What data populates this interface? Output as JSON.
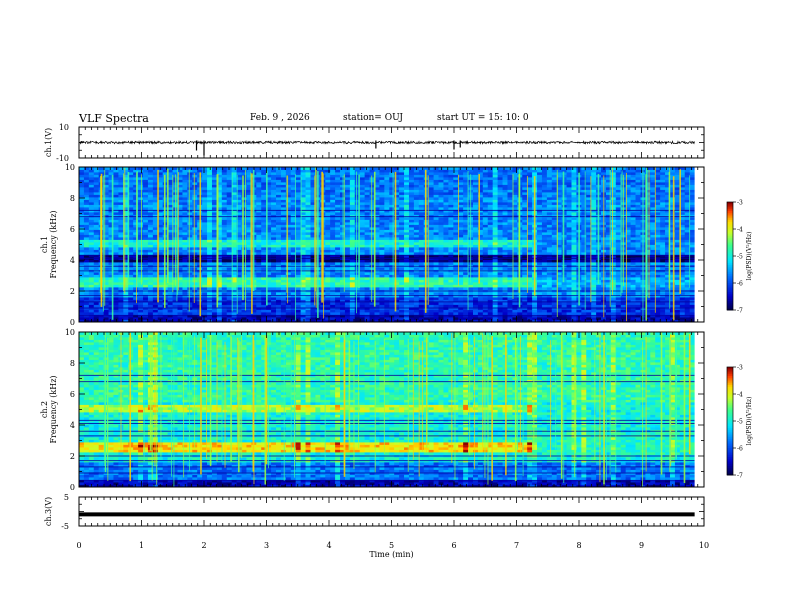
{
  "header": {
    "title": "VLF Spectra",
    "date": "Feb. 9 , 2026",
    "station": "station= OUJ",
    "start": "start UT = 15: 10: 0"
  },
  "chart_data": [
    {
      "type": "line",
      "name": "ch1-waveform",
      "ylabel": "ch.1(V)",
      "ytick_labels": [
        "10",
        "-10"
      ],
      "ylim": [
        -10,
        10
      ],
      "xlim": [
        0,
        10
      ],
      "description_level": 0
    },
    {
      "type": "heatmap",
      "name": "ch1-spectrogram",
      "ylabel": "ch.1",
      "ylabel2": "Frequency (kHz)",
      "ylim": [
        0,
        10
      ],
      "yticks": [
        0,
        2,
        4,
        6,
        8,
        10
      ],
      "xlim": [
        0,
        10
      ],
      "colorbar": {
        "label": "log(PSD)(V²/Hz)",
        "range": [
          -7,
          -3
        ],
        "ticks": [
          "-3",
          "-4",
          "-5",
          "-6",
          "-7"
        ]
      },
      "bands": [
        {
          "t_start": 0,
          "t_end": 7.25,
          "f_low": 2.3,
          "f_high": 2.9,
          "level": -4.8
        },
        {
          "t_start": 0,
          "t_end": 7.25,
          "f_low": 4.8,
          "f_high": 5.3,
          "level": -5.0
        },
        {
          "t_start": 7.25,
          "t_end": 9.85,
          "f_low": 2.2,
          "f_high": 2.9,
          "level": -5.5
        },
        {
          "t_start": 0,
          "t_end": 9.85,
          "f_low": 3.8,
          "f_high": 4.4,
          "level": -6.8
        }
      ]
    },
    {
      "type": "heatmap",
      "name": "ch2-spectrogram",
      "ylabel": "ch.2",
      "ylabel2": "Frequency (kHz)",
      "ylim": [
        0,
        10
      ],
      "yticks": [
        0,
        2,
        4,
        6,
        8,
        10
      ],
      "xlim": [
        0,
        10
      ],
      "colorbar": {
        "label": "log(PSD)(V²/Hz)",
        "range": [
          -7,
          -3
        ],
        "ticks": [
          "-3",
          "-4",
          "-5",
          "-6",
          "-7"
        ]
      },
      "bands": [
        {
          "t_start": 0,
          "t_end": 7.25,
          "f_low": 2.3,
          "f_high": 2.9,
          "level": -3.8
        },
        {
          "t_start": 0,
          "t_end": 7.25,
          "f_low": 4.8,
          "f_high": 5.4,
          "level": -4.2
        },
        {
          "t_start": 7.25,
          "t_end": 9.85,
          "f_low": 2.2,
          "f_high": 3.6,
          "level": -4.9
        },
        {
          "t_start": 0,
          "t_end": 9.85,
          "f_low": 5.5,
          "f_high": 10,
          "level": -4.8
        }
      ]
    },
    {
      "type": "line",
      "name": "ch3-waveform",
      "ylabel": "ch.3(V)",
      "ytick_labels": [
        "5",
        "-5"
      ],
      "ylim": [
        -5,
        5
      ],
      "xlim": [
        0,
        10
      ],
      "description_level": -1
    }
  ],
  "xaxis": {
    "label": "Time (min)",
    "ticks": [
      0,
      1,
      2,
      3,
      4,
      5,
      6,
      7,
      8,
      9,
      10
    ],
    "tick_labels": [
      "0",
      "1",
      "2",
      "3",
      "4",
      "5",
      "6",
      "7",
      "8",
      "9",
      "10"
    ],
    "data_end": 9.85
  }
}
